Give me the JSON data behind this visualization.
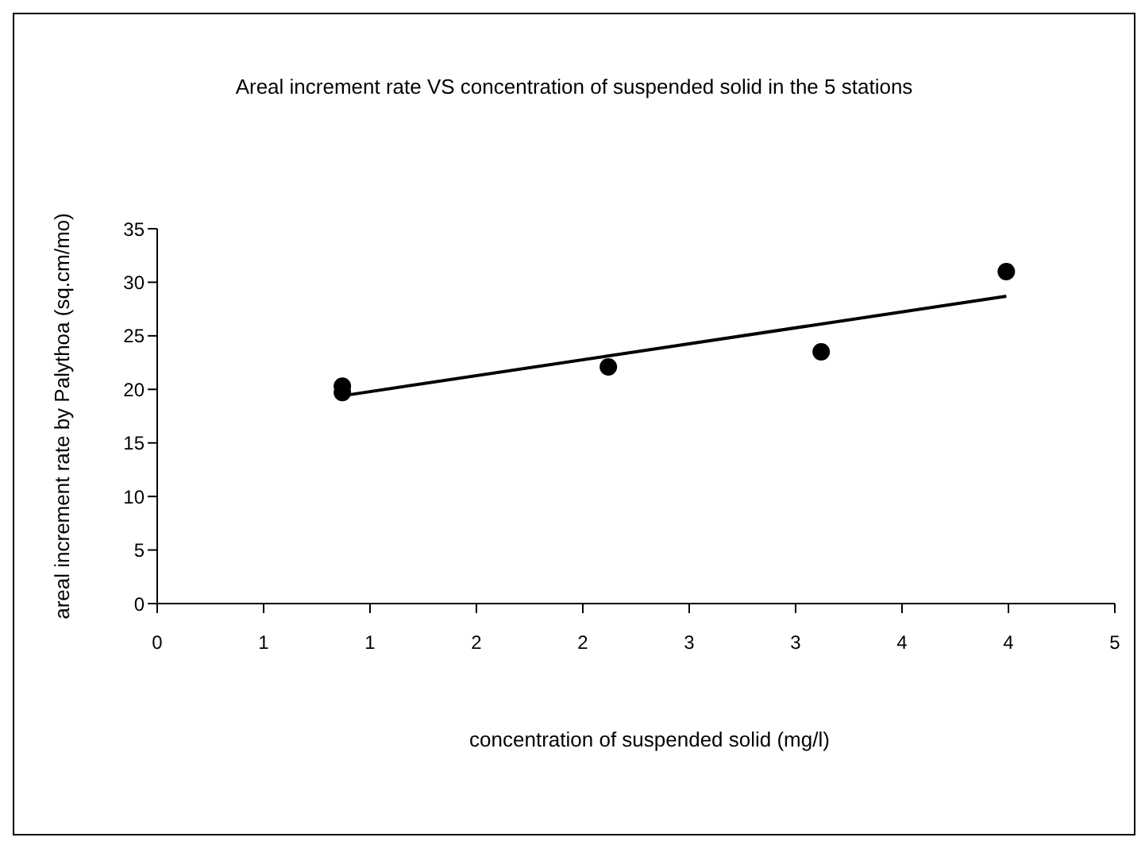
{
  "chart_data": {
    "type": "scatter",
    "title": "Areal increment rate VS concentration of suspended solid in the 5 stations",
    "xlabel": "concentration of suspended solid (mg/l)",
    "ylabel": "areal increment rate by Palythoa (sq.cm/mo)",
    "series": [
      {
        "color": "#000000",
        "marker": "circle",
        "x": [
          0.87,
          0.87,
          2.12,
          3.12,
          3.99
        ],
        "values": [
          20.3,
          19.7,
          22.1,
          23.5,
          31.0
        ]
      },
      {
        "type": "line",
        "color": "#000000",
        "marker": "none",
        "x": [
          0.87,
          3.99
        ],
        "values": [
          19.4,
          28.7
        ]
      }
    ],
    "xlim": [
      0,
      4.5
    ],
    "xticks": [
      {
        "value": 0,
        "label": "0"
      },
      {
        "value": 0.5,
        "label": "1"
      },
      {
        "value": 1,
        "label": "1"
      },
      {
        "value": 1.5,
        "label": "2"
      },
      {
        "value": 2,
        "label": "2"
      },
      {
        "value": 2.5,
        "label": "3"
      },
      {
        "value": 3,
        "label": "3"
      },
      {
        "value": 3.5,
        "label": "4"
      },
      {
        "value": 4,
        "label": "4"
      },
      {
        "value": 4.5,
        "label": "5"
      }
    ],
    "ylim": [
      0,
      35
    ],
    "yticks": [
      0,
      5,
      10,
      15,
      20,
      25,
      30,
      35
    ],
    "grid": false,
    "legend": false
  }
}
